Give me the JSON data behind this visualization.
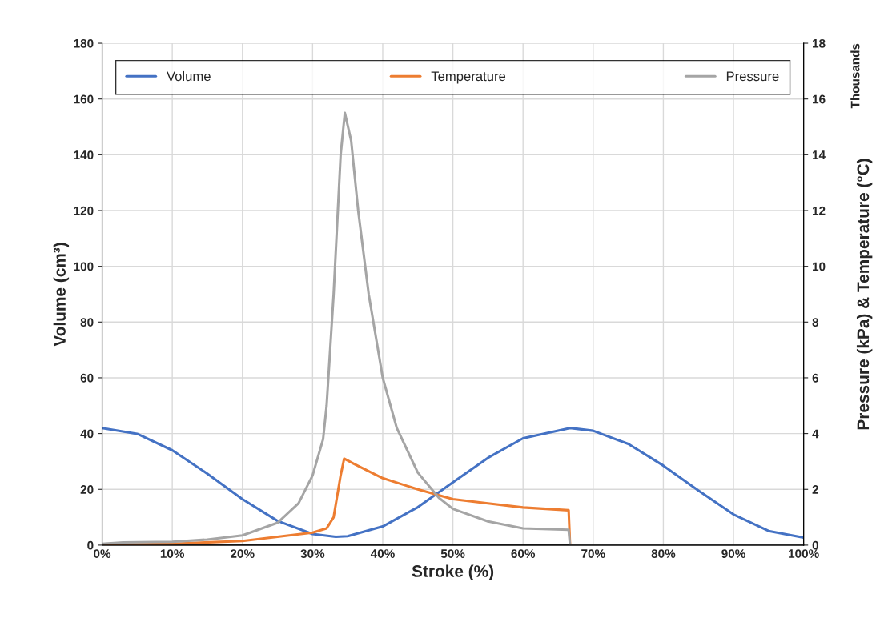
{
  "chart_data": {
    "type": "line",
    "xlabel": "Stroke (%)",
    "ylabel": "Volume (cm³)",
    "y2label": "Pressure (kPa) & Temperature (°C)",
    "annotations": [
      "Thousands"
    ],
    "xlim": [
      0,
      100
    ],
    "xticks": [
      {
        "value": 0,
        "label": "0%"
      },
      {
        "value": 10,
        "label": "10%"
      },
      {
        "value": 20,
        "label": "20%"
      },
      {
        "value": 30,
        "label": "30%"
      },
      {
        "value": 40,
        "label": "40%"
      },
      {
        "value": 50,
        "label": "50%"
      },
      {
        "value": 60,
        "label": "60%"
      },
      {
        "value": 70,
        "label": "70%"
      },
      {
        "value": 80,
        "label": "80%"
      },
      {
        "value": 90,
        "label": "90%"
      },
      {
        "value": 100,
        "label": "100%"
      }
    ],
    "ylim": [
      0,
      180
    ],
    "yticks": [
      0,
      20,
      40,
      60,
      80,
      100,
      120,
      140,
      160,
      180
    ],
    "y2lim": [
      0,
      18
    ],
    "y2ticks": [
      0,
      2,
      4,
      6,
      8,
      10,
      12,
      14,
      16,
      18
    ],
    "grid": true,
    "legend": "top",
    "series": [
      {
        "name": "Volume",
        "color": "#4472c4",
        "x": [
          0,
          5,
          10,
          15,
          20,
          25,
          30,
          33.3,
          35,
          40,
          45,
          50,
          55,
          60,
          66.7,
          70,
          75,
          80,
          85,
          90,
          95,
          100
        ],
        "values": [
          42,
          39.9,
          34,
          25.6,
          16.5,
          8.7,
          4.0,
          3.0,
          3.2,
          6.7,
          13.6,
          22.5,
          31.3,
          38.3,
          42,
          41.0,
          36.3,
          28.5,
          19.6,
          11,
          5.1,
          2.7
        ]
      },
      {
        "name": "Temperature",
        "color": "#ed7d31",
        "axis": "y2",
        "x": [
          0,
          10,
          20,
          25,
          30,
          32,
          33,
          34,
          34.5,
          36,
          40,
          45,
          50,
          55,
          60,
          66.5,
          66.7,
          100
        ],
        "values": [
          0.02,
          0.05,
          0.15,
          0.3,
          0.45,
          0.6,
          1.0,
          2.5,
          3.1,
          2.9,
          2.4,
          2.0,
          1.65,
          1.5,
          1.35,
          1.25,
          0,
          0
        ]
      },
      {
        "name": "Pressure",
        "color": "#a5a5a5",
        "axis": "y2",
        "x": [
          0,
          3,
          10,
          15,
          20,
          25,
          28,
          30,
          31.5,
          32,
          33,
          34,
          34.6,
          35.5,
          36.5,
          38,
          40,
          42,
          45,
          48,
          50,
          55,
          60,
          66.5,
          66.7,
          100
        ],
        "values": [
          0.05,
          0.1,
          0.12,
          0.2,
          0.35,
          0.8,
          1.5,
          2.5,
          3.8,
          5,
          9,
          14,
          15.5,
          14.5,
          12,
          9,
          6,
          4.2,
          2.6,
          1.7,
          1.3,
          0.85,
          0.6,
          0.55,
          0,
          0
        ]
      }
    ]
  }
}
